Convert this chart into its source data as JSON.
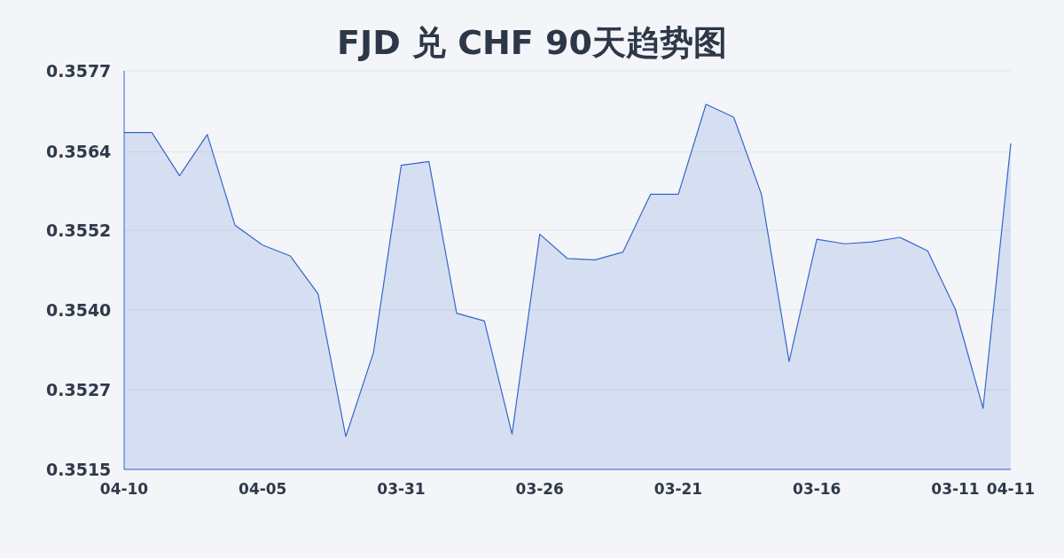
{
  "chart_data": {
    "type": "area",
    "title": "FJD 兑 CHF 90天趋势图",
    "categories": [
      "04-10",
      null,
      null,
      null,
      null,
      "04-05",
      null,
      null,
      null,
      null,
      "03-31",
      null,
      null,
      null,
      null,
      "03-26",
      null,
      null,
      null,
      null,
      "03-21",
      null,
      null,
      null,
      null,
      "03-16",
      null,
      null,
      null,
      null,
      "03-11",
      null,
      "04-11"
    ],
    "values": [
      0.35674,
      0.35674,
      0.35607,
      0.35671,
      0.3553,
      0.35499,
      0.35482,
      0.35423,
      0.35201,
      0.35332,
      0.35623,
      0.35629,
      0.35393,
      0.35381,
      0.35205,
      0.35516,
      0.35478,
      0.35476,
      0.35488,
      0.35578,
      0.35578,
      0.35718,
      0.35698,
      0.35578,
      0.35318,
      0.35508,
      0.35501,
      0.35504,
      0.35511,
      0.3549,
      0.35399,
      0.35245,
      0.35657
    ],
    "color": "#3566cc",
    "ylim": [
      0.3515,
      0.3577
    ],
    "yticks": [
      {
        "value": 0.3515,
        "label": "0.3515"
      },
      {
        "value": 0.35274,
        "label": "0.3527"
      },
      {
        "value": 0.35398,
        "label": "0.3540"
      },
      {
        "value": 0.35522,
        "label": "0.3552"
      },
      {
        "value": 0.35644,
        "label": "0.3564"
      },
      {
        "value": 0.3577,
        "label": "0.3577"
      }
    ],
    "grid": "y"
  }
}
